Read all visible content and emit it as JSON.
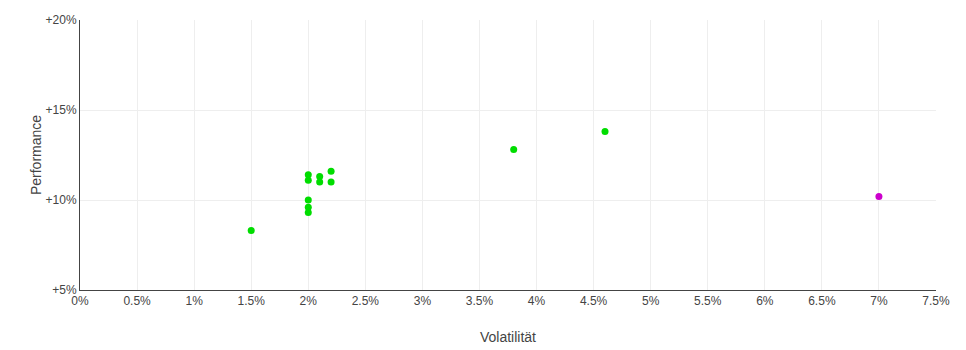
{
  "chart_data": {
    "type": "scatter",
    "x_label": "Volatilität",
    "y_label": "Performance",
    "xlim": [
      0.0,
      0.075
    ],
    "ylim": [
      0.05,
      0.2
    ],
    "xticks": [
      {
        "value": 0.0,
        "label": "0%"
      },
      {
        "value": 0.005,
        "label": "0.5%"
      },
      {
        "value": 0.01,
        "label": "1%"
      },
      {
        "value": 0.015,
        "label": "1.5%"
      },
      {
        "value": 0.02,
        "label": "2%"
      },
      {
        "value": 0.025,
        "label": "2.5%"
      },
      {
        "value": 0.03,
        "label": "3%"
      },
      {
        "value": 0.035,
        "label": "3.5%"
      },
      {
        "value": 0.04,
        "label": "4%"
      },
      {
        "value": 0.045,
        "label": "4.5%"
      },
      {
        "value": 0.05,
        "label": "5%"
      },
      {
        "value": 0.055,
        "label": "5.5%"
      },
      {
        "value": 0.06,
        "label": "6%"
      },
      {
        "value": 0.065,
        "label": "6.5%"
      },
      {
        "value": 0.07,
        "label": "7%"
      },
      {
        "value": 0.075,
        "label": "7.5%"
      }
    ],
    "yticks": [
      {
        "value": 0.05,
        "label": "+5%"
      },
      {
        "value": 0.1,
        "label": "+10%"
      },
      {
        "value": 0.15,
        "label": "+15%"
      },
      {
        "value": 0.2,
        "label": "+20%"
      }
    ],
    "grid": true,
    "series": [
      {
        "color": "#00dd00",
        "x": [
          0.015,
          0.02,
          0.02,
          0.021,
          0.021,
          0.022,
          0.022,
          0.02,
          0.02,
          0.02,
          0.038,
          0.046
        ],
        "values": [
          0.083,
          0.111,
          0.114,
          0.113,
          0.11,
          0.116,
          0.11,
          0.1,
          0.096,
          0.093,
          0.128,
          0.138
        ]
      },
      {
        "color": "#cc00cc",
        "x": [
          0.07
        ],
        "values": [
          0.102
        ]
      }
    ]
  }
}
